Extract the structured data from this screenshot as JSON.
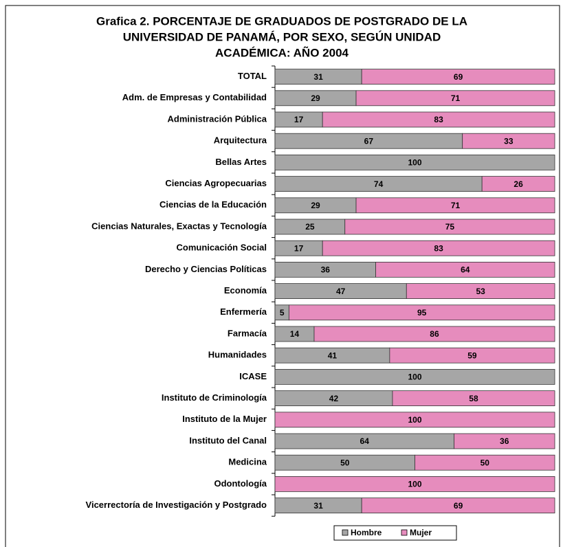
{
  "chart_data": {
    "type": "stacked-barh",
    "title": [
      "Grafica 2. PORCENTAJE DE GRADUADOS DE POSTGRADO DE LA",
      "UNIVERSIDAD DE PANAMÁ, POR SEXO, SEGÚN UNIDAD",
      "ACADÉMICA: AÑO 2004"
    ],
    "categories": [
      "TOTAL",
      "Adm. de Empresas y Contabilidad",
      "Administración Pública",
      "Arquitectura",
      "Bellas Artes",
      "Ciencias Agropecuarias",
      "Ciencias de la Educación",
      "Ciencias Naturales, Exactas y Tecnología",
      "Comunicación Social",
      "Derecho y Ciencias Políticas",
      "Economía",
      "Enfermería",
      "Farmacía",
      "Humanidades",
      "ICASE",
      "Instituto de Criminología",
      "Instituto de la Mujer",
      "Instituto del Canal",
      "Medicina",
      "Odontología",
      "Vicerrectoría de Investigación y Postgrado"
    ],
    "series": [
      {
        "name": "Hombre",
        "color": "#a6a6a6",
        "values": [
          31,
          29,
          17,
          67,
          100,
          74,
          29,
          25,
          17,
          36,
          47,
          5,
          14,
          41,
          100,
          42,
          0,
          64,
          50,
          0,
          31
        ]
      },
      {
        "name": "Mujer",
        "color": "#e68cbd",
        "values": [
          69,
          71,
          83,
          33,
          0,
          26,
          71,
          75,
          83,
          64,
          53,
          95,
          86,
          59,
          0,
          58,
          100,
          36,
          50,
          100,
          69
        ]
      }
    ],
    "xlim": [
      0,
      100
    ],
    "legend": "bottom"
  }
}
